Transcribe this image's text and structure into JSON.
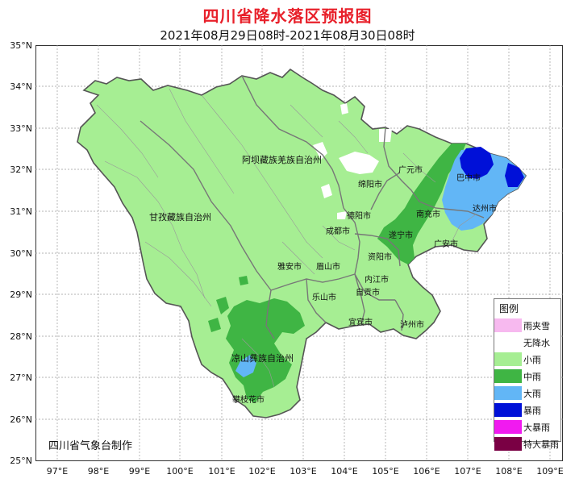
{
  "title": "四川省降水落区预报图",
  "subtitle": "2021年08月29日08时-2021年08月30日08时",
  "credit": "四川省气象台制作",
  "latitudes": [
    "35°N",
    "34°N",
    "33°N",
    "32°N",
    "31°N",
    "30°N",
    "29°N",
    "28°N",
    "27°N",
    "26°N",
    "25°N"
  ],
  "longitudes": [
    "97°E",
    "98°E",
    "99°E",
    "100°E",
    "101°E",
    "102°E",
    "103°E",
    "104°E",
    "105°E",
    "106°E",
    "107°E",
    "108°E",
    "109°E"
  ],
  "legend": {
    "title": "图例",
    "items": [
      {
        "label": "雨夹雪",
        "color": "#f7b9ef"
      },
      {
        "label": "无降水",
        "color": "#ffffff"
      },
      {
        "label": "小雨",
        "color": "#a6ee93"
      },
      {
        "label": "中雨",
        "color": "#3fb544"
      },
      {
        "label": "大雨",
        "color": "#62b6f6"
      },
      {
        "label": "暴雨",
        "color": "#0010d8"
      },
      {
        "label": "大暴雨",
        "color": "#f11af0"
      },
      {
        "label": "特大暴雨",
        "color": "#7a0044"
      }
    ]
  },
  "regions": [
    {
      "label": "阿坝藏族羌族自治州"
    },
    {
      "label": "甘孜藏族自治州"
    },
    {
      "label": "凉山彝族自治州"
    },
    {
      "label": "攀枝花市"
    },
    {
      "label": "广元市"
    },
    {
      "label": "绵阳市"
    },
    {
      "label": "巴中市"
    },
    {
      "label": "德阳市"
    },
    {
      "label": "南充市"
    },
    {
      "label": "达州市"
    },
    {
      "label": "成都市"
    },
    {
      "label": "遂宁市"
    },
    {
      "label": "广安市"
    },
    {
      "label": "资阳市"
    },
    {
      "label": "雅安市"
    },
    {
      "label": "眉山市"
    },
    {
      "label": "内江市"
    },
    {
      "label": "乐山市"
    },
    {
      "label": "自贡市"
    },
    {
      "label": "宜宾市"
    },
    {
      "label": "泸州市"
    }
  ]
}
